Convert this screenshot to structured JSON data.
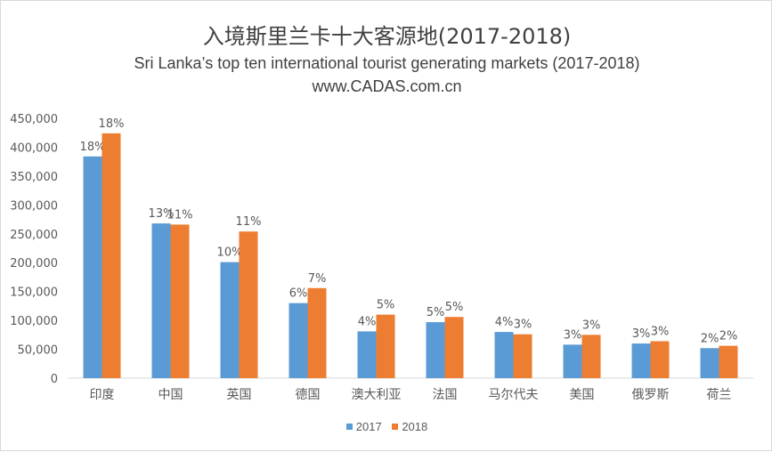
{
  "chart_data": {
    "type": "bar",
    "title": "入境斯里兰卡十大客源地(2017-2018)",
    "subtitle": "Sri Lanka’s top ten international tourist generating markets (2017-2018)",
    "source": "www.CADAS.com.cn",
    "categories": [
      "印度",
      "中国",
      "英国",
      "德国",
      "澳大利亚",
      "法国",
      "马尔代夫",
      "美国",
      "俄罗斯",
      "荷兰"
    ],
    "series": [
      {
        "name": "2017",
        "color": "#5b9bd5",
        "values": [
          384000,
          268000,
          201000,
          130000,
          81000,
          97000,
          80000,
          58000,
          60000,
          52000
        ],
        "labels": [
          "18%",
          "13%",
          "10%",
          "6%",
          "4%",
          "5%",
          "4%",
          "3%",
          "3%",
          "2%"
        ]
      },
      {
        "name": "2018",
        "color": "#ed7d31",
        "values": [
          424000,
          266000,
          254000,
          156000,
          110000,
          106000,
          76000,
          75000,
          64000,
          56000
        ],
        "labels": [
          "18%",
          "11%",
          "11%",
          "7%",
          "5%",
          "5%",
          "3%",
          "3%",
          "3%",
          "2%"
        ]
      }
    ],
    "ylim": [
      0,
      450000
    ],
    "y_ticks": [
      "0",
      "50,000",
      "100,000",
      "150,000",
      "200,000",
      "250,000",
      "300,000",
      "350,000",
      "400,000",
      "450,000"
    ],
    "y_tick_values": [
      0,
      50000,
      100000,
      150000,
      200000,
      250000,
      300000,
      350000,
      400000,
      450000
    ],
    "grid": false,
    "legend_position": "bottom",
    "xlabel": "",
    "ylabel": ""
  }
}
